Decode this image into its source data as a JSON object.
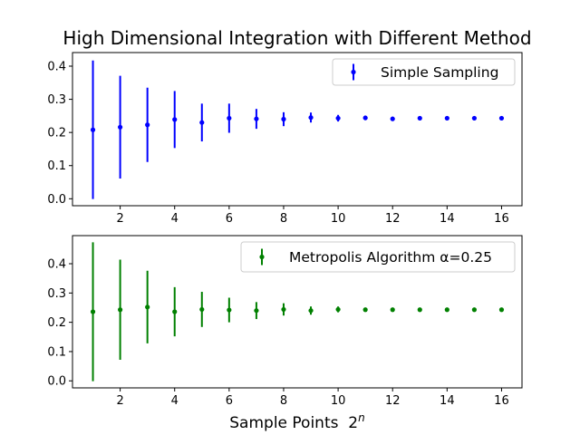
{
  "figure_title": "High Dimensional Integration with Different Method",
  "chart_data": [
    {
      "type": "scatter",
      "title": "",
      "xlabel": "",
      "ylabel": "",
      "xlim": [
        0.25,
        16.75
      ],
      "ylim": [
        -0.021,
        0.441
      ],
      "xticks": [
        2,
        4,
        6,
        8,
        10,
        12,
        14,
        16
      ],
      "yticks": [
        0.0,
        0.1,
        0.2,
        0.3,
        0.4
      ],
      "grid": false,
      "legend_position": "top-right",
      "color": "#0000ff",
      "series": [
        {
          "name": "Simple Sampling",
          "x": [
            1,
            2,
            3,
            4,
            5,
            6,
            7,
            8,
            9,
            10,
            11,
            12,
            13,
            14,
            15,
            16
          ],
          "y": [
            0.208,
            0.216,
            0.223,
            0.239,
            0.23,
            0.243,
            0.241,
            0.24,
            0.245,
            0.243,
            0.244,
            0.241,
            0.243,
            0.243,
            0.243,
            0.243
          ],
          "yerr": [
            0.209,
            0.155,
            0.112,
            0.086,
            0.057,
            0.044,
            0.03,
            0.021,
            0.015,
            0.01,
            0.007,
            0.005,
            0.004,
            0.003,
            0.002,
            0.002
          ]
        }
      ]
    },
    {
      "type": "scatter",
      "title": "",
      "xlabel": "Sample Points  2^n",
      "ylabel": "",
      "xlim": [
        0.25,
        16.75
      ],
      "ylim": [
        -0.024,
        0.496
      ],
      "xticks": [
        2,
        4,
        6,
        8,
        10,
        12,
        14,
        16
      ],
      "yticks": [
        0.0,
        0.1,
        0.2,
        0.3,
        0.4
      ],
      "grid": false,
      "legend_position": "top-right",
      "color": "#008000",
      "series": [
        {
          "name": "Metropolis Algorithm α=0.25",
          "x": [
            1,
            2,
            3,
            4,
            5,
            6,
            7,
            8,
            9,
            10,
            11,
            12,
            13,
            14,
            15,
            16
          ],
          "y": [
            0.236,
            0.243,
            0.252,
            0.236,
            0.244,
            0.242,
            0.24,
            0.244,
            0.24,
            0.244,
            0.243,
            0.243,
            0.243,
            0.243,
            0.243,
            0.243
          ],
          "yerr": [
            0.237,
            0.171,
            0.124,
            0.084,
            0.06,
            0.042,
            0.029,
            0.021,
            0.014,
            0.01,
            0.007,
            0.005,
            0.004,
            0.003,
            0.002,
            0.002
          ]
        }
      ]
    }
  ]
}
